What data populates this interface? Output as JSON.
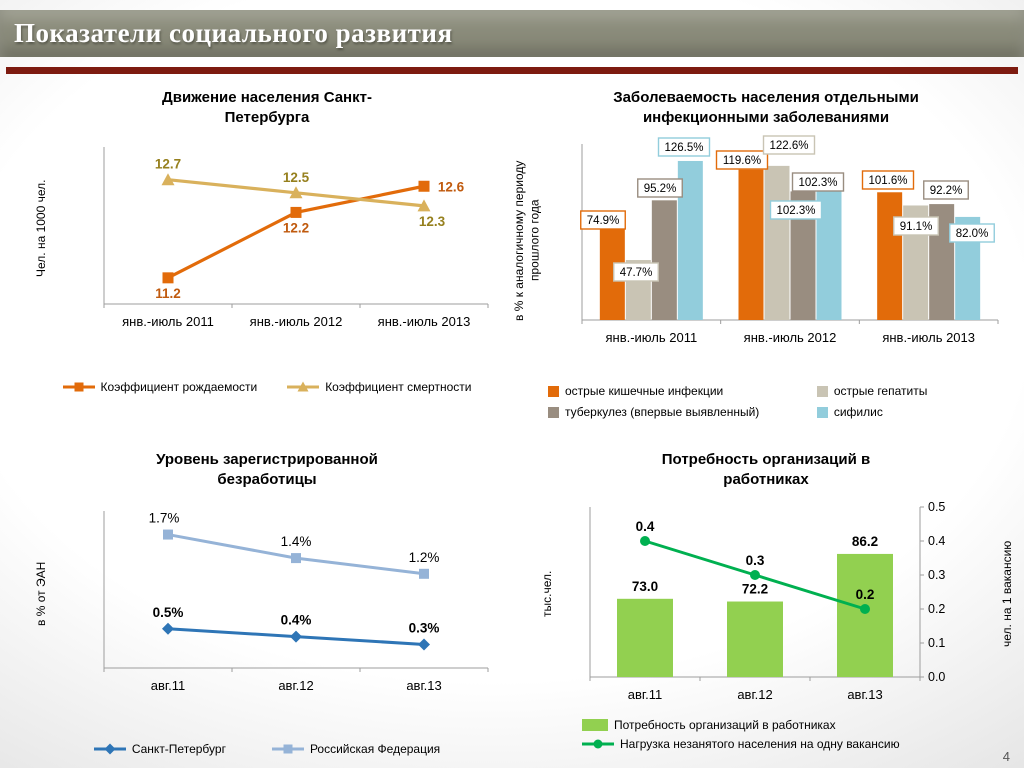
{
  "slide": {
    "title": "Показатели социального развития",
    "page_number": "4",
    "colors": {
      "header_band": "#8a8b7a",
      "accent_rule": "#7d1b10"
    }
  },
  "chart_data": [
    {
      "id": "population",
      "type": "line",
      "title": "Движение населения Санкт-Петербурга",
      "ylabel": "Чел. на 1000 чел.",
      "categories": [
        "янв.-июль 2011",
        "янв.-июль 2012",
        "янв.-июль 2013"
      ],
      "series": [
        {
          "name": "Коэффициент рождаемости",
          "values": [
            11.2,
            12.2,
            12.6
          ],
          "labels": [
            "11.2",
            "12.2",
            "12.6"
          ],
          "color": "#E26B0A",
          "label_color": "#C05A0E",
          "marker": "square",
          "label_bold": true
        },
        {
          "name": "Коэффициент смертности",
          "values": [
            12.7,
            12.5,
            12.3
          ],
          "labels": [
            "12.7",
            "12.5",
            "12.3"
          ],
          "color": "#D9B15C",
          "label_color": "#96801E",
          "marker": "triangle",
          "label_bold": true
        }
      ],
      "ylim": [
        10.8,
        13.2
      ],
      "grid": false,
      "legend_position": "bottom"
    },
    {
      "id": "morbidity",
      "type": "bar",
      "title": "Заболеваемость населения отдельными инфекционными заболеваниями",
      "ylabel": "в % к аналогичному периоду прошлого года",
      "categories": [
        "янв.-июль 2011",
        "янв.-июль 2012",
        "янв.-июль 2013"
      ],
      "series": [
        {
          "name": "острые кишечные инфекции",
          "values": [
            74.9,
            119.6,
            101.6
          ],
          "labels": [
            "74.9%",
            "119.6%",
            "101.6%"
          ],
          "color": "#E26B0A"
        },
        {
          "name": "острые гепатиты",
          "values": [
            47.7,
            122.6,
            91.1
          ],
          "labels": [
            "47.7%",
            "122.6%",
            "91.1%"
          ],
          "color": "#C9C4B4"
        },
        {
          "name": "туберкулез (впервые выявленный)",
          "values": [
            95.2,
            102.3,
            92.2
          ],
          "labels": [
            "95.2%",
            "102.3%",
            "92.2%"
          ],
          "color": "#998D80"
        },
        {
          "name": "сифилис",
          "values": [
            126.5,
            102.3,
            82.0
          ],
          "labels": [
            "126.5%",
            "102.3%",
            "82.0%"
          ],
          "color": "#92CDDC"
        }
      ],
      "ylim": [
        0,
        140
      ],
      "grid": false,
      "legend_position": "bottom"
    },
    {
      "id": "unemployment",
      "type": "line",
      "title": "Уровень зарегистрированной безработицы",
      "ylabel": "в % от ЭАН",
      "categories": [
        "авг.11",
        "авг.12",
        "авг.13"
      ],
      "series": [
        {
          "name": "Санкт-Петербург",
          "values": [
            0.5,
            0.4,
            0.3
          ],
          "labels": [
            "0.5%",
            "0.4%",
            "0.3%"
          ],
          "color": "#2E75B6",
          "label_color": "#000000",
          "marker": "diamond",
          "label_bold": true
        },
        {
          "name": "Российская Федерация",
          "values": [
            1.7,
            1.4,
            1.2
          ],
          "labels": [
            "1.7%",
            "1.4%",
            "1.2%"
          ],
          "color": "#95B3D7",
          "label_color": "#000000",
          "marker": "square",
          "label_bold": false
        }
      ],
      "ylim": [
        0,
        2.0
      ],
      "grid": false,
      "legend_position": "bottom"
    },
    {
      "id": "vacancies",
      "type": "combo",
      "title": "Потребность организаций в работниках",
      "ylabel_left": "тыс.чел.",
      "ylabel_right": "чел. на 1 вакансию",
      "categories": [
        "авг.11",
        "авг.12",
        "авг.13"
      ],
      "bar_series": {
        "name": "Потребность организаций в работниках",
        "values": [
          73.0,
          72.2,
          86.2
        ],
        "labels": [
          "73.0",
          "72.2",
          "86.2"
        ],
        "color": "#92D050"
      },
      "line_series": {
        "name": "Нагрузка незанятого населения на одну вакансию",
        "values": [
          0.4,
          0.3,
          0.2
        ],
        "labels": [
          "0.4",
          "0.3",
          "0.2"
        ],
        "color": "#00B050",
        "marker": "circle"
      },
      "ylim_left": [
        50,
        100
      ],
      "ylim_right": [
        0,
        0.5
      ],
      "right_axis_ticks": [
        "0.0",
        "0.1",
        "0.2",
        "0.3",
        "0.4",
        "0.5"
      ],
      "grid": false,
      "legend_position": "bottom"
    }
  ]
}
